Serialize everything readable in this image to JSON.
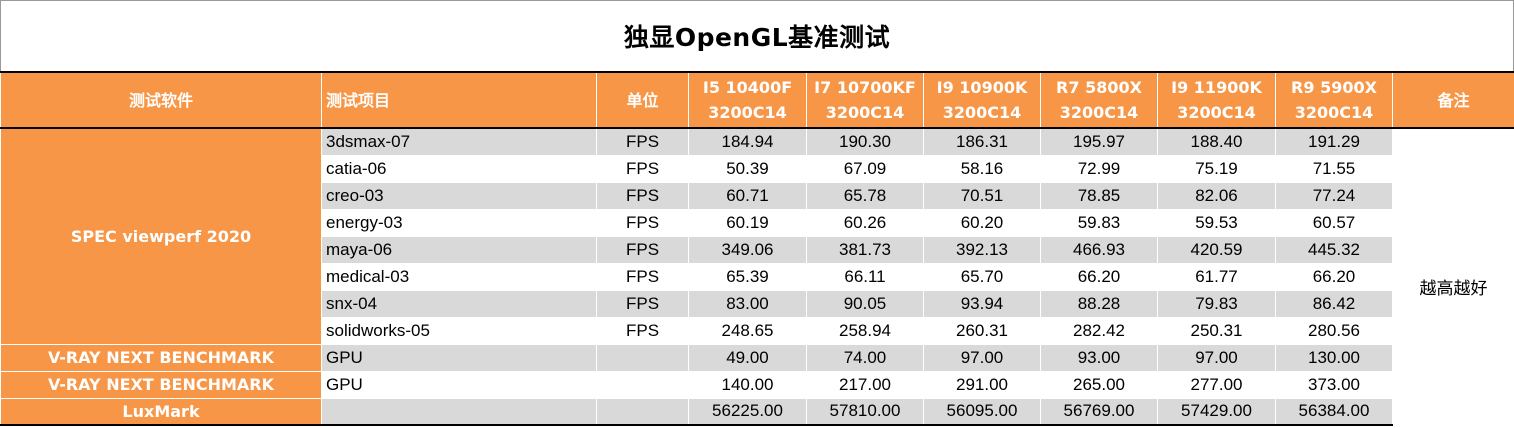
{
  "title": "独显OpenGL基准测试",
  "headers": {
    "software": "测试软件",
    "item": "测试项目",
    "unit": "单位",
    "cpus": [
      {
        "line1": "I5 10400F",
        "line2": "3200C14"
      },
      {
        "line1": "I7 10700KF",
        "line2": "3200C14"
      },
      {
        "line1": "I9 10900K",
        "line2": "3200C14"
      },
      {
        "line1": "R7 5800X",
        "line2": "3200C14"
      },
      {
        "line1": "I9 11900K",
        "line2": "3200C14"
      },
      {
        "line1": "R9 5900X",
        "line2": "3200C14"
      }
    ],
    "note": "备注"
  },
  "groups": {
    "spec": "SPEC viewperf 2020",
    "vray1": "V-RAY NEXT BENCHMARK",
    "vray2": "V-RAY NEXT BENCHMARK",
    "luxmark": "LuxMark"
  },
  "note_text": "越高越好",
  "chart_data": {
    "type": "table",
    "title": "独显OpenGL基准测试",
    "columns": [
      "测试软件",
      "测试项目",
      "单位",
      "I5 10400F 3200C14",
      "I7 10700KF 3200C14",
      "I9 10900K 3200C14",
      "R7 5800X 3200C14",
      "I9 11900K 3200C14",
      "R9 5900X 3200C14",
      "备注"
    ],
    "rows": [
      {
        "software": "SPEC viewperf 2020",
        "item": "3dsmax-07",
        "unit": "FPS",
        "values": [
          "184.94",
          "190.30",
          "186.31",
          "195.97",
          "188.40",
          "191.29"
        ]
      },
      {
        "software": "SPEC viewperf 2020",
        "item": "catia-06",
        "unit": "FPS",
        "values": [
          "50.39",
          "67.09",
          "58.16",
          "72.99",
          "75.19",
          "71.55"
        ]
      },
      {
        "software": "SPEC viewperf 2020",
        "item": "creo-03",
        "unit": "FPS",
        "values": [
          "60.71",
          "65.78",
          "70.51",
          "78.85",
          "82.06",
          "77.24"
        ]
      },
      {
        "software": "SPEC viewperf 2020",
        "item": "energy-03",
        "unit": "FPS",
        "values": [
          "60.19",
          "60.26",
          "60.20",
          "59.83",
          "59.53",
          "60.57"
        ]
      },
      {
        "software": "SPEC viewperf 2020",
        "item": "maya-06",
        "unit": "FPS",
        "values": [
          "349.06",
          "381.73",
          "392.13",
          "466.93",
          "420.59",
          "445.32"
        ]
      },
      {
        "software": "SPEC viewperf 2020",
        "item": "medical-03",
        "unit": "FPS",
        "values": [
          "65.39",
          "66.11",
          "65.70",
          "66.20",
          "61.77",
          "66.20"
        ]
      },
      {
        "software": "SPEC viewperf 2020",
        "item": "snx-04",
        "unit": "FPS",
        "values": [
          "83.00",
          "90.05",
          "93.94",
          "88.28",
          "79.83",
          "86.42"
        ]
      },
      {
        "software": "SPEC viewperf 2020",
        "item": "solidworks-05",
        "unit": "FPS",
        "values": [
          "248.65",
          "258.94",
          "260.31",
          "282.42",
          "250.31",
          "280.56"
        ]
      },
      {
        "software": "V-RAY NEXT BENCHMARK",
        "item": "GPU",
        "unit": "",
        "values": [
          "49.00",
          "74.00",
          "97.00",
          "93.00",
          "97.00",
          "130.00"
        ]
      },
      {
        "software": "V-RAY NEXT BENCHMARK",
        "item": "GPU",
        "unit": "",
        "values": [
          "140.00",
          "217.00",
          "291.00",
          "265.00",
          "277.00",
          "373.00"
        ]
      },
      {
        "software": "LuxMark",
        "item": "",
        "unit": "",
        "values": [
          "56225.00",
          "57810.00",
          "56095.00",
          "56769.00",
          "57429.00",
          "56384.00"
        ]
      }
    ],
    "note": "越高越好"
  },
  "colors": {
    "header_bg": "#F79646",
    "row_grey": "#D9D9D9",
    "row_white": "#FFFFFF",
    "header_text": "#FFFFFF"
  }
}
